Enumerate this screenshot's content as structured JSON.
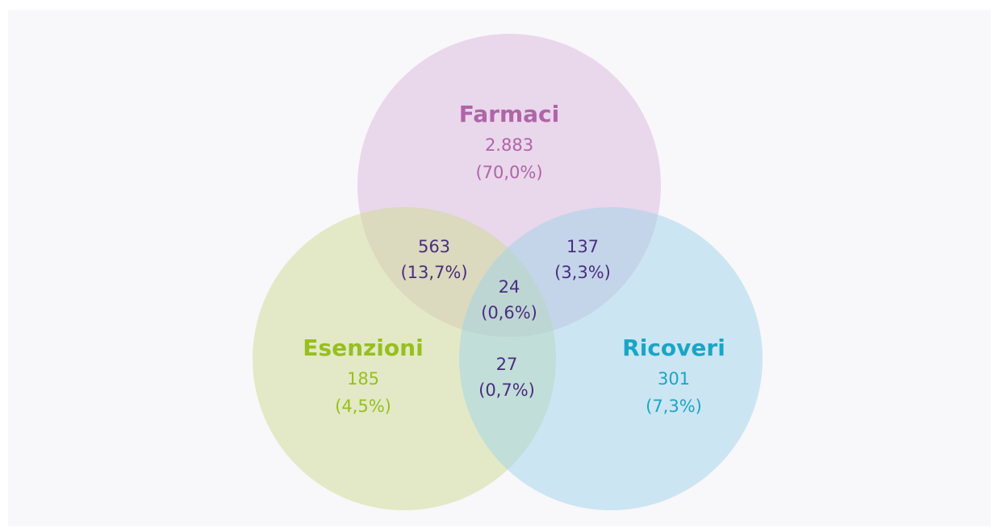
{
  "sets": [
    {
      "name": "Farmaci",
      "count": "2.883",
      "percent": "(70,0%)"
    },
    {
      "name": "Esenzioni",
      "count": "185",
      "percent": "(4,5%)"
    },
    {
      "name": "Ricoveri",
      "count": "301",
      "percent": "(7,3%)"
    }
  ],
  "intersections": [
    {
      "count": "563",
      "percent": "(13,7%)"
    },
    {
      "count": "137",
      "percent": "(3,3%)"
    },
    {
      "count": "24",
      "percent": "(0,6%)"
    },
    {
      "count": "27",
      "percent": "(0,7%)"
    }
  ]
}
